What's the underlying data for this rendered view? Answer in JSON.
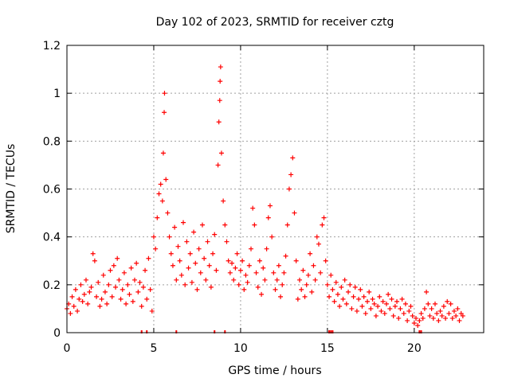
{
  "chart_data": {
    "type": "scatter",
    "title": "Day 102 of 2023, SRMTID for receiver cztg",
    "xlabel": "GPS time / hours",
    "ylabel": "SRMTID / TECUs",
    "xlim": [
      0,
      24
    ],
    "ylim": [
      0,
      1.2
    ],
    "xticks": [
      0,
      5,
      10,
      15,
      20
    ],
    "xtick_labels": [
      "0",
      "5",
      "10",
      "15",
      "20"
    ],
    "yticks": [
      0,
      0.2,
      0.4,
      0.6,
      0.8,
      1.0,
      1.2
    ],
    "ytick_labels": [
      "0",
      "0.2",
      "0.4",
      "0.6",
      "0.8",
      "1",
      "1.2"
    ],
    "grid": true,
    "marker": "+",
    "marker_color": "#ff0000",
    "series": [
      {
        "name": "SRMTID",
        "points": [
          [
            0.0,
            0.1
          ],
          [
            0.1,
            0.12
          ],
          [
            0.2,
            0.08
          ],
          [
            0.3,
            0.15
          ],
          [
            0.4,
            0.11
          ],
          [
            0.5,
            0.18
          ],
          [
            0.6,
            0.09
          ],
          [
            0.7,
            0.14
          ],
          [
            0.8,
            0.2
          ],
          [
            0.9,
            0.13
          ],
          [
            1.0,
            0.16
          ],
          [
            1.1,
            0.22
          ],
          [
            1.2,
            0.12
          ],
          [
            1.3,
            0.17
          ],
          [
            1.4,
            0.19
          ],
          [
            1.5,
            0.33
          ],
          [
            1.6,
            0.3
          ],
          [
            1.7,
            0.15
          ],
          [
            1.8,
            0.21
          ],
          [
            1.9,
            0.11
          ],
          [
            2.0,
            0.14
          ],
          [
            2.1,
            0.24
          ],
          [
            2.2,
            0.17
          ],
          [
            2.3,
            0.12
          ],
          [
            2.4,
            0.2
          ],
          [
            2.5,
            0.26
          ],
          [
            2.6,
            0.15
          ],
          [
            2.7,
            0.28
          ],
          [
            2.8,
            0.19
          ],
          [
            2.9,
            0.31
          ],
          [
            3.0,
            0.22
          ],
          [
            3.1,
            0.14
          ],
          [
            3.2,
            0.18
          ],
          [
            3.3,
            0.25
          ],
          [
            3.4,
            0.12
          ],
          [
            3.5,
            0.2
          ],
          [
            3.6,
            0.16
          ],
          [
            3.7,
            0.27
          ],
          [
            3.8,
            0.13
          ],
          [
            3.9,
            0.22
          ],
          [
            4.0,
            0.29
          ],
          [
            4.1,
            0.17
          ],
          [
            4.2,
            0.21
          ],
          [
            4.3,
            0.11
          ],
          [
            4.4,
            0.19
          ],
          [
            4.5,
            0.26
          ],
          [
            4.6,
            0.14
          ],
          [
            4.7,
            0.31
          ],
          [
            4.8,
            0.18
          ],
          [
            4.9,
            0.09
          ],
          [
            5.0,
            0.4
          ],
          [
            5.1,
            0.35
          ],
          [
            5.2,
            0.48
          ],
          [
            5.3,
            0.58
          ],
          [
            5.4,
            0.62
          ],
          [
            5.5,
            0.55
          ],
          [
            5.55,
            0.75
          ],
          [
            5.6,
            0.92
          ],
          [
            5.62,
            1.0
          ],
          [
            5.7,
            0.64
          ],
          [
            5.8,
            0.5
          ],
          [
            5.9,
            0.4
          ],
          [
            6.0,
            0.33
          ],
          [
            6.1,
            0.28
          ],
          [
            6.2,
            0.44
          ],
          [
            6.3,
            0.22
          ],
          [
            6.4,
            0.36
          ],
          [
            6.5,
            0.3
          ],
          [
            6.6,
            0.24
          ],
          [
            6.7,
            0.46
          ],
          [
            6.8,
            0.2
          ],
          [
            6.9,
            0.38
          ],
          [
            7.0,
            0.27
          ],
          [
            7.1,
            0.33
          ],
          [
            7.2,
            0.21
          ],
          [
            7.3,
            0.42
          ],
          [
            7.4,
            0.29
          ],
          [
            7.5,
            0.18
          ],
          [
            7.6,
            0.35
          ],
          [
            7.7,
            0.25
          ],
          [
            7.8,
            0.45
          ],
          [
            7.9,
            0.31
          ],
          [
            8.0,
            0.22
          ],
          [
            8.1,
            0.38
          ],
          [
            8.2,
            0.28
          ],
          [
            8.3,
            0.19
          ],
          [
            8.4,
            0.33
          ],
          [
            8.5,
            0.41
          ],
          [
            8.6,
            0.26
          ],
          [
            8.7,
            0.7
          ],
          [
            8.75,
            0.88
          ],
          [
            8.8,
            0.97
          ],
          [
            8.82,
            1.05
          ],
          [
            8.85,
            1.11
          ],
          [
            8.9,
            0.75
          ],
          [
            9.0,
            0.55
          ],
          [
            9.1,
            0.45
          ],
          [
            9.2,
            0.38
          ],
          [
            9.3,
            0.3
          ],
          [
            9.4,
            0.25
          ],
          [
            9.5,
            0.29
          ],
          [
            9.6,
            0.22
          ],
          [
            9.7,
            0.27
          ],
          [
            9.8,
            0.33
          ],
          [
            9.9,
            0.2
          ],
          [
            10.0,
            0.26
          ],
          [
            10.1,
            0.3
          ],
          [
            10.2,
            0.18
          ],
          [
            10.3,
            0.24
          ],
          [
            10.4,
            0.21
          ],
          [
            10.5,
            0.28
          ],
          [
            10.6,
            0.35
          ],
          [
            10.7,
            0.52
          ],
          [
            10.8,
            0.45
          ],
          [
            10.9,
            0.25
          ],
          [
            11.0,
            0.19
          ],
          [
            11.1,
            0.3
          ],
          [
            11.2,
            0.16
          ],
          [
            11.3,
            0.27
          ],
          [
            11.4,
            0.22
          ],
          [
            11.5,
            0.35
          ],
          [
            11.6,
            0.48
          ],
          [
            11.7,
            0.53
          ],
          [
            11.8,
            0.4
          ],
          [
            11.9,
            0.25
          ],
          [
            12.0,
            0.18
          ],
          [
            12.1,
            0.22
          ],
          [
            12.2,
            0.28
          ],
          [
            12.3,
            0.15
          ],
          [
            12.4,
            0.2
          ],
          [
            12.5,
            0.25
          ],
          [
            12.6,
            0.32
          ],
          [
            12.7,
            0.45
          ],
          [
            12.8,
            0.6
          ],
          [
            12.9,
            0.66
          ],
          [
            13.0,
            0.73
          ],
          [
            13.1,
            0.5
          ],
          [
            13.2,
            0.3
          ],
          [
            13.3,
            0.14
          ],
          [
            13.4,
            0.22
          ],
          [
            13.5,
            0.18
          ],
          [
            13.6,
            0.26
          ],
          [
            13.7,
            0.15
          ],
          [
            13.8,
            0.2
          ],
          [
            13.9,
            0.24
          ],
          [
            14.0,
            0.33
          ],
          [
            14.1,
            0.17
          ],
          [
            14.2,
            0.28
          ],
          [
            14.3,
            0.22
          ],
          [
            14.4,
            0.4
          ],
          [
            14.5,
            0.37
          ],
          [
            14.6,
            0.25
          ],
          [
            14.7,
            0.45
          ],
          [
            14.8,
            0.48
          ],
          [
            14.9,
            0.3
          ],
          [
            15.0,
            0.2
          ],
          [
            15.1,
            0.15
          ],
          [
            15.2,
            0.24
          ],
          [
            15.3,
            0.18
          ],
          [
            15.4,
            0.13
          ],
          [
            15.5,
            0.21
          ],
          [
            15.6,
            0.16
          ],
          [
            15.7,
            0.11
          ],
          [
            15.8,
            0.19
          ],
          [
            15.9,
            0.14
          ],
          [
            16.0,
            0.22
          ],
          [
            16.1,
            0.12
          ],
          [
            16.2,
            0.17
          ],
          [
            16.3,
            0.2
          ],
          [
            16.4,
            0.1
          ],
          [
            16.5,
            0.15
          ],
          [
            16.6,
            0.19
          ],
          [
            16.7,
            0.09
          ],
          [
            16.8,
            0.14
          ],
          [
            16.9,
            0.18
          ],
          [
            17.0,
            0.11
          ],
          [
            17.1,
            0.15
          ],
          [
            17.2,
            0.08
          ],
          [
            17.3,
            0.13
          ],
          [
            17.4,
            0.17
          ],
          [
            17.5,
            0.1
          ],
          [
            17.6,
            0.14
          ],
          [
            17.7,
            0.12
          ],
          [
            17.8,
            0.07
          ],
          [
            17.9,
            0.11
          ],
          [
            18.0,
            0.15
          ],
          [
            18.1,
            0.09
          ],
          [
            18.2,
            0.13
          ],
          [
            18.3,
            0.08
          ],
          [
            18.4,
            0.12
          ],
          [
            18.5,
            0.16
          ],
          [
            18.6,
            0.1
          ],
          [
            18.7,
            0.14
          ],
          [
            18.8,
            0.07
          ],
          [
            18.9,
            0.11
          ],
          [
            19.0,
            0.13
          ],
          [
            19.1,
            0.06
          ],
          [
            19.2,
            0.1
          ],
          [
            19.3,
            0.14
          ],
          [
            19.4,
            0.08
          ],
          [
            19.5,
            0.12
          ],
          [
            19.6,
            0.05
          ],
          [
            19.7,
            0.09
          ],
          [
            19.8,
            0.11
          ],
          [
            19.9,
            0.07
          ],
          [
            20.0,
            0.04
          ],
          [
            20.1,
            0.06
          ],
          [
            20.2,
            0.03
          ],
          [
            20.3,
            0.05
          ],
          [
            20.4,
            0.08
          ],
          [
            20.5,
            0.06
          ],
          [
            20.6,
            0.1
          ],
          [
            20.7,
            0.17
          ],
          [
            20.8,
            0.12
          ],
          [
            20.9,
            0.07
          ],
          [
            21.0,
            0.1
          ],
          [
            21.1,
            0.06
          ],
          [
            21.2,
            0.12
          ],
          [
            21.3,
            0.08
          ],
          [
            21.4,
            0.05
          ],
          [
            21.5,
            0.09
          ],
          [
            21.6,
            0.07
          ],
          [
            21.7,
            0.11
          ],
          [
            21.8,
            0.06
          ],
          [
            21.9,
            0.13
          ],
          [
            22.0,
            0.08
          ],
          [
            22.1,
            0.12
          ],
          [
            22.2,
            0.06
          ],
          [
            22.3,
            0.09
          ],
          [
            22.4,
            0.07
          ],
          [
            22.5,
            0.1
          ],
          [
            22.6,
            0.05
          ],
          [
            22.7,
            0.08
          ],
          [
            22.8,
            0.07
          ]
        ]
      }
    ],
    "baseline_markers_x": [
      4.3,
      4.6,
      6.3,
      8.5,
      9.1,
      15.1,
      15.2,
      15.3,
      20.3,
      20.4
    ]
  }
}
